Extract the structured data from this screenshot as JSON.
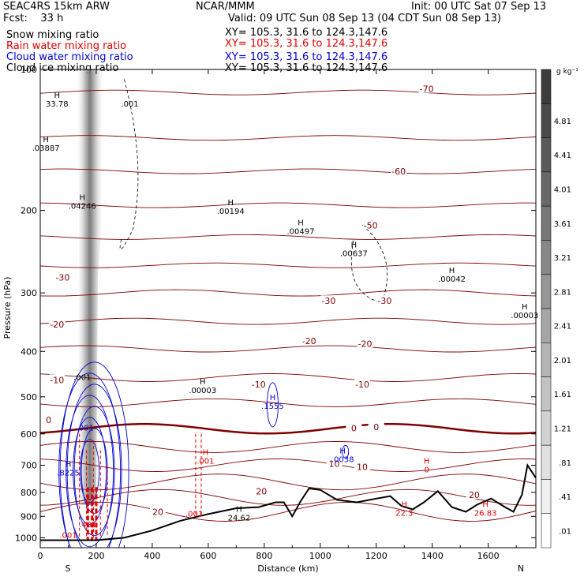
{
  "header": {
    "model": "SEAC4RS 15km ARW",
    "center": "NCAR/MMM",
    "init": "Init: 00 UTC Sat 07 Sep 13",
    "fcst": "Fcst:    33 h",
    "valid": "Valid: 09 UTC Sun 08 Sep 13 (04 CDT Sun 08 Sep 13)",
    "fields": [
      {
        "name": "Snow mixing ratio",
        "xy": "XY= 105.3, 31.6 to 124.3,147.6",
        "color": "#000000"
      },
      {
        "name": "Rain water mixing ratio",
        "xy": "XY= 105.3, 31.6 to 124.3,147.6",
        "color": "#e00000"
      },
      {
        "name": "Cloud water mixing ratio",
        "xy": "XY= 105.3, 31.6 to 124.3,147.6",
        "color": "#0000d0"
      },
      {
        "name": "Cloud ice mixing ratio",
        "xy": "XY= 105.3, 31.6 to 124.3,147.6",
        "color": "#000000"
      }
    ]
  },
  "chart_data": {
    "type": "cross-section",
    "xlabel": "Distance (km)",
    "ylabel": "Pressure (hPa)",
    "x_ticks": [
      "0",
      "200",
      "400",
      "600",
      "800",
      "1000",
      "1200",
      "1400",
      "1600"
    ],
    "y_ticks": [
      "100",
      "200",
      "300",
      "400",
      "500",
      "600",
      "700",
      "800",
      "900",
      "1000"
    ],
    "xlim": [
      0,
      1770
    ],
    "ylim_hpa": [
      100,
      1050
    ],
    "endpoints": {
      "left": "S",
      "right": "N"
    },
    "colorbar": {
      "unit": "g kg⁻¹",
      "labels": [
        "4.81",
        "4.41",
        "4.01",
        "3.61",
        "3.21",
        "2.81",
        "2.41",
        "2.01",
        "1.61",
        "1.21",
        ".81",
        ".41",
        ".01"
      ]
    },
    "temperature_contours": [
      {
        "label": "-70",
        "x": 1380,
        "p": 110
      },
      {
        "label": "-60",
        "x": 1280,
        "p": 165
      },
      {
        "label": "-50",
        "x": 1180,
        "p": 215
      },
      {
        "label": "-30",
        "x": 80,
        "p": 278
      },
      {
        "label": "-30",
        "x": 1030,
        "p": 312
      },
      {
        "label": "-30",
        "x": 1230,
        "p": 312
      },
      {
        "label": "-20",
        "x": 60,
        "p": 350
      },
      {
        "label": "-20",
        "x": 960,
        "p": 380
      },
      {
        "label": "-20",
        "x": 1160,
        "p": 385
      },
      {
        "label": "-10",
        "x": 60,
        "p": 460
      },
      {
        "label": "-10",
        "x": 780,
        "p": 470
      },
      {
        "label": "-10",
        "x": 1150,
        "p": 470
      },
      {
        "label": "0",
        "x": 30,
        "p": 560
      },
      {
        "label": "0",
        "x": 1120,
        "p": 583
      },
      {
        "label": "0",
        "x": 1200,
        "p": 580
      },
      {
        "label": "10",
        "x": 1050,
        "p": 695
      },
      {
        "label": "10",
        "x": 1150,
        "p": 705
      },
      {
        "label": "20",
        "x": 790,
        "p": 795
      },
      {
        "label": "20",
        "x": 1550,
        "p": 810
      },
      {
        "label": "20",
        "x": 420,
        "p": 880
      }
    ],
    "extrema": [
      {
        "label": "H",
        "value": "33.78",
        "x": 60,
        "p": 115,
        "color": "#000000"
      },
      {
        "label": "H",
        "value": ".03887",
        "x": 20,
        "p": 143,
        "color": "#000000"
      },
      {
        "label": "H",
        "value": ".04246",
        "x": 150,
        "p": 190,
        "color": "#000000"
      },
      {
        "label": "H",
        "value": ".00194",
        "x": 680,
        "p": 195,
        "color": "#000000"
      },
      {
        "label": "H",
        "value": ".00497",
        "x": 930,
        "p": 215,
        "color": "#000000"
      },
      {
        "label": "H",
        "value": ".00637",
        "x": 1120,
        "p": 240,
        "color": "#000000"
      },
      {
        "label": "H",
        "value": ".00042",
        "x": 1470,
        "p": 272,
        "color": "#000000"
      },
      {
        "label": "H",
        "value": ".00003",
        "x": 1730,
        "p": 325,
        "color": "#000000"
      },
      {
        "label": "H",
        "value": ".00003",
        "x": 580,
        "p": 470,
        "color": "#000000"
      },
      {
        "label": "H",
        "value": ".1555",
        "x": 830,
        "p": 508,
        "color": "#0000d0"
      },
      {
        "label": "H",
        "value": ".0038",
        "x": 1080,
        "p": 660,
        "color": "#0000d0"
      },
      {
        "label": "H",
        "value": ".001",
        "x": 590,
        "p": 665,
        "color": "#e00000"
      },
      {
        "label": "H",
        "value": ".8225",
        "x": 100,
        "p": 705,
        "color": "#0000d0"
      },
      {
        "label": "H",
        "value": "0",
        "x": 1380,
        "p": 695,
        "color": "#e00000"
      },
      {
        "label": "H",
        "value": "24.62",
        "x": 710,
        "p": 880,
        "color": "#000000"
      },
      {
        "label": "H",
        "value": "22.3",
        "x": 1300,
        "p": 860,
        "color": "#e00000"
      },
      {
        "label": "H",
        "value": "26.83",
        "x": 1590,
        "p": 860,
        "color": "#e00000"
      }
    ],
    "contour_value_labels": [
      {
        "text": ".001",
        "x": 320,
        "p": 120,
        "color": "#000000"
      },
      {
        "text": ".001",
        "x": 150,
        "p": 460,
        "color": "#000000"
      },
      {
        "text": ".001",
        "x": 550,
        "p": 900,
        "color": "#e00000"
      },
      {
        "text": ".001",
        "x": 100,
        "p": 1000,
        "color": "#e00000"
      },
      {
        "text": ".401",
        "x": 170,
        "p": 950,
        "color": "#e00000"
      },
      {
        "text": ".001",
        "x": 160,
        "p": 590,
        "color": "#0000d0"
      }
    ],
    "terrain_pressure": [
      {
        "x": 0,
        "p": 1012
      },
      {
        "x": 200,
        "p": 1012
      },
      {
        "x": 300,
        "p": 1000
      },
      {
        "x": 400,
        "p": 965
      },
      {
        "x": 500,
        "p": 920
      },
      {
        "x": 600,
        "p": 890
      },
      {
        "x": 700,
        "p": 865
      },
      {
        "x": 780,
        "p": 860
      },
      {
        "x": 840,
        "p": 840
      },
      {
        "x": 870,
        "p": 840
      },
      {
        "x": 900,
        "p": 900
      },
      {
        "x": 930,
        "p": 835
      },
      {
        "x": 960,
        "p": 785
      },
      {
        "x": 1000,
        "p": 790
      },
      {
        "x": 1060,
        "p": 830
      },
      {
        "x": 1130,
        "p": 840
      },
      {
        "x": 1200,
        "p": 825
      },
      {
        "x": 1250,
        "p": 815
      },
      {
        "x": 1290,
        "p": 855
      },
      {
        "x": 1330,
        "p": 870
      },
      {
        "x": 1370,
        "p": 840
      },
      {
        "x": 1420,
        "p": 795
      },
      {
        "x": 1470,
        "p": 860
      },
      {
        "x": 1520,
        "p": 880
      },
      {
        "x": 1560,
        "p": 850
      },
      {
        "x": 1610,
        "p": 825
      },
      {
        "x": 1660,
        "p": 860
      },
      {
        "x": 1690,
        "p": 880
      },
      {
        "x": 1720,
        "p": 810
      },
      {
        "x": 1740,
        "p": 700
      },
      {
        "x": 1770,
        "p": 745
      }
    ]
  }
}
